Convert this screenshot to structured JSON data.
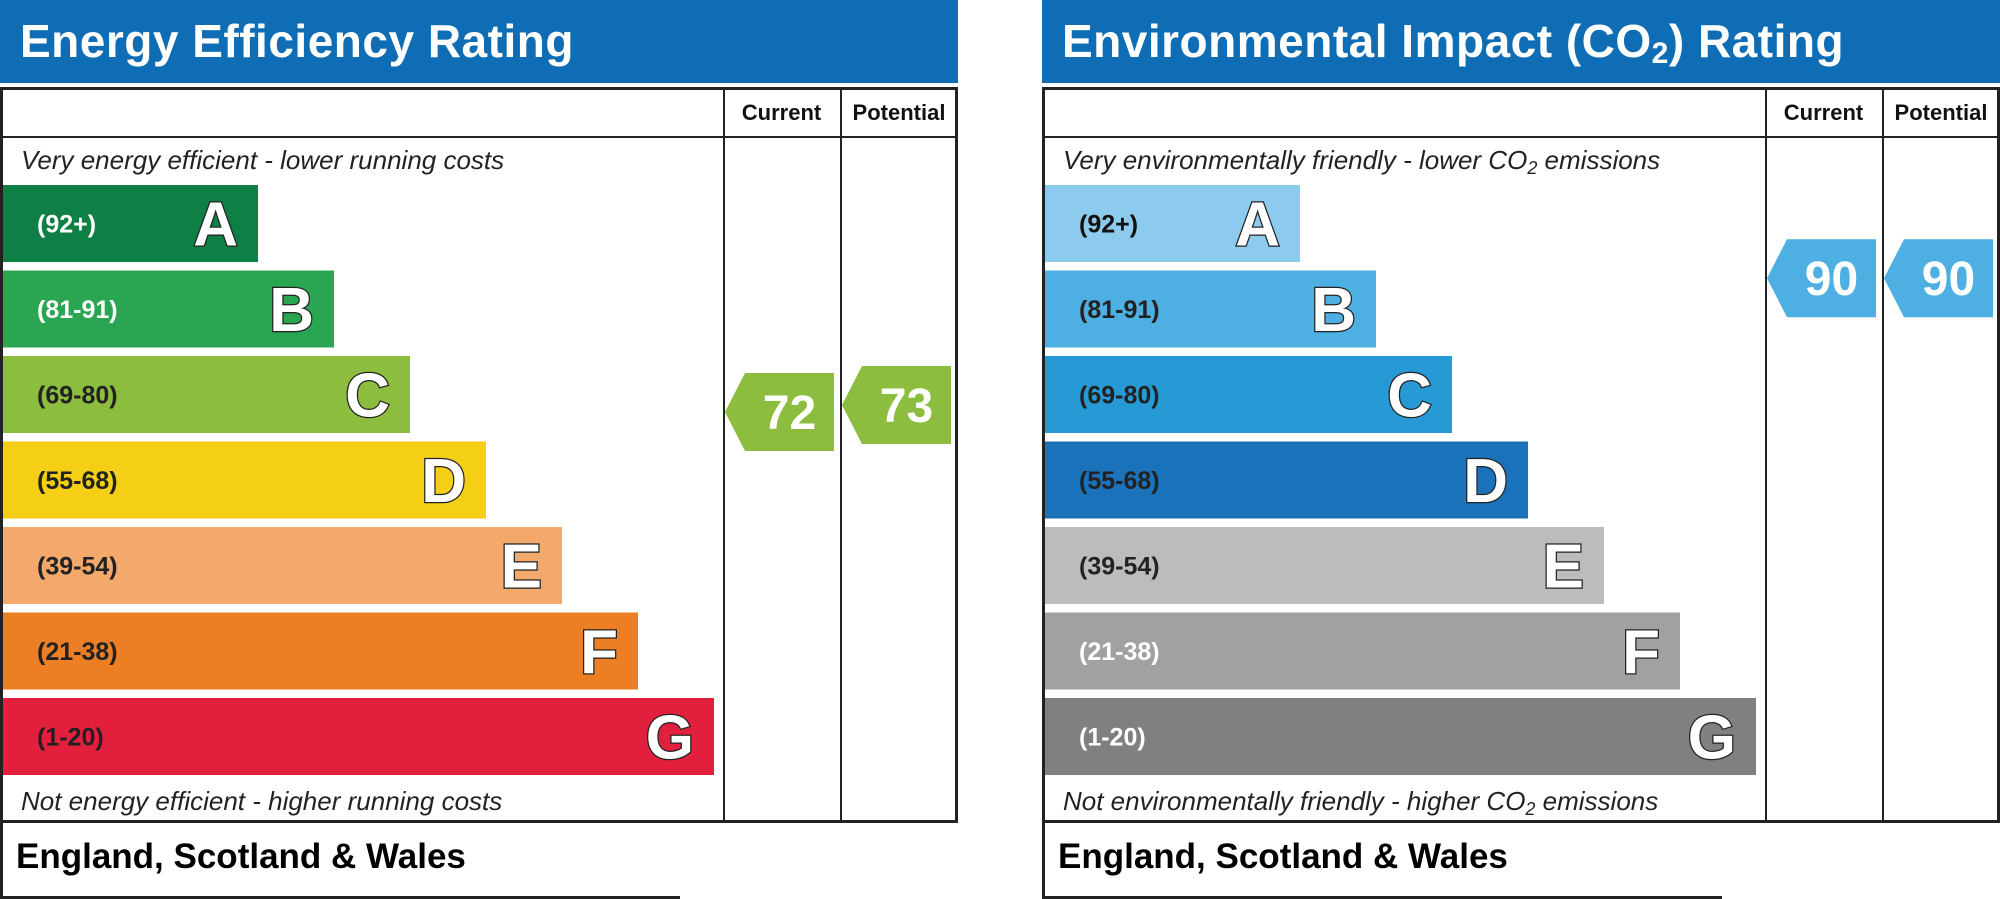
{
  "chart_data": [
    {
      "type": "bar",
      "title": "Energy Efficiency Rating",
      "columns": [
        "Current",
        "Potential"
      ],
      "top_caption": "Very energy efficient - lower running costs",
      "bottom_caption": "Not energy efficient - higher running costs",
      "footer": "England, Scotland & Wales",
      "bands": [
        {
          "letter": "A",
          "range": "(92+)",
          "min": 92,
          "max": 100,
          "color": "#0e8046",
          "label_color": "#ffffff"
        },
        {
          "letter": "B",
          "range": "(81-91)",
          "min": 81,
          "max": 91,
          "color": "#2aa652",
          "label_color": "#ffffff"
        },
        {
          "letter": "C",
          "range": "(69-80)",
          "min": 69,
          "max": 80,
          "color": "#8cbd3f",
          "label_color": "#222222"
        },
        {
          "letter": "D",
          "range": "(55-68)",
          "min": 55,
          "max": 68,
          "color": "#f5cf16",
          "label_color": "#222222"
        },
        {
          "letter": "E",
          "range": "(39-54)",
          "min": 39,
          "max": 54,
          "color": "#f2a96b",
          "label_color": "#222222"
        },
        {
          "letter": "F",
          "range": "(21-38)",
          "min": 21,
          "max": 38,
          "color": "#ec7f24",
          "label_color": "#222222"
        },
        {
          "letter": "G",
          "range": "(1-20)",
          "min": 1,
          "max": 20,
          "color": "#e21f3d",
          "label_color": "#222222"
        }
      ],
      "current": {
        "value": 72,
        "color": "#8cbd3f"
      },
      "potential": {
        "value": 73,
        "color": "#8cbd3f"
      }
    },
    {
      "type": "bar",
      "title": "Environmental Impact (CO",
      "title_sub": "2",
      "title_tail": ") Rating",
      "columns": [
        "Current",
        "Potential"
      ],
      "top_caption": "Very environmentally friendly - lower CO",
      "top_caption_sub": "2",
      "top_caption_tail": " emissions",
      "bottom_caption": "Not environmentally friendly - higher CO",
      "bottom_caption_sub": "2",
      "bottom_caption_tail": " emissions",
      "footer": "England, Scotland & Wales",
      "bands": [
        {
          "letter": "A",
          "range": "(92+)",
          "min": 92,
          "max": 100,
          "color": "#8ccbee",
          "label_color": "#111111"
        },
        {
          "letter": "B",
          "range": "(81-91)",
          "min": 81,
          "max": 91,
          "color": "#4dafe2",
          "label_color": "#222222"
        },
        {
          "letter": "C",
          "range": "(69-80)",
          "min": 69,
          "max": 80,
          "color": "#279ad5",
          "label_color": "#222222"
        },
        {
          "letter": "D",
          "range": "(55-68)",
          "min": 55,
          "max": 68,
          "color": "#1a72ba",
          "label_color": "#222222"
        },
        {
          "letter": "E",
          "range": "(39-54)",
          "min": 39,
          "max": 54,
          "color": "#bdbcba",
          "label_color": "#222222"
        },
        {
          "letter": "F",
          "range": "(21-38)",
          "min": 21,
          "max": 38,
          "color": "#a2a1a0",
          "label_color": "#ffffff"
        },
        {
          "letter": "G",
          "range": "(1-20)",
          "min": 1,
          "max": 20,
          "color": "#81807f",
          "label_color": "#ffffff"
        }
      ],
      "current": {
        "value": 90,
        "color": "#4dafe2"
      },
      "potential": {
        "value": 90,
        "color": "#4dafe2"
      }
    }
  ]
}
